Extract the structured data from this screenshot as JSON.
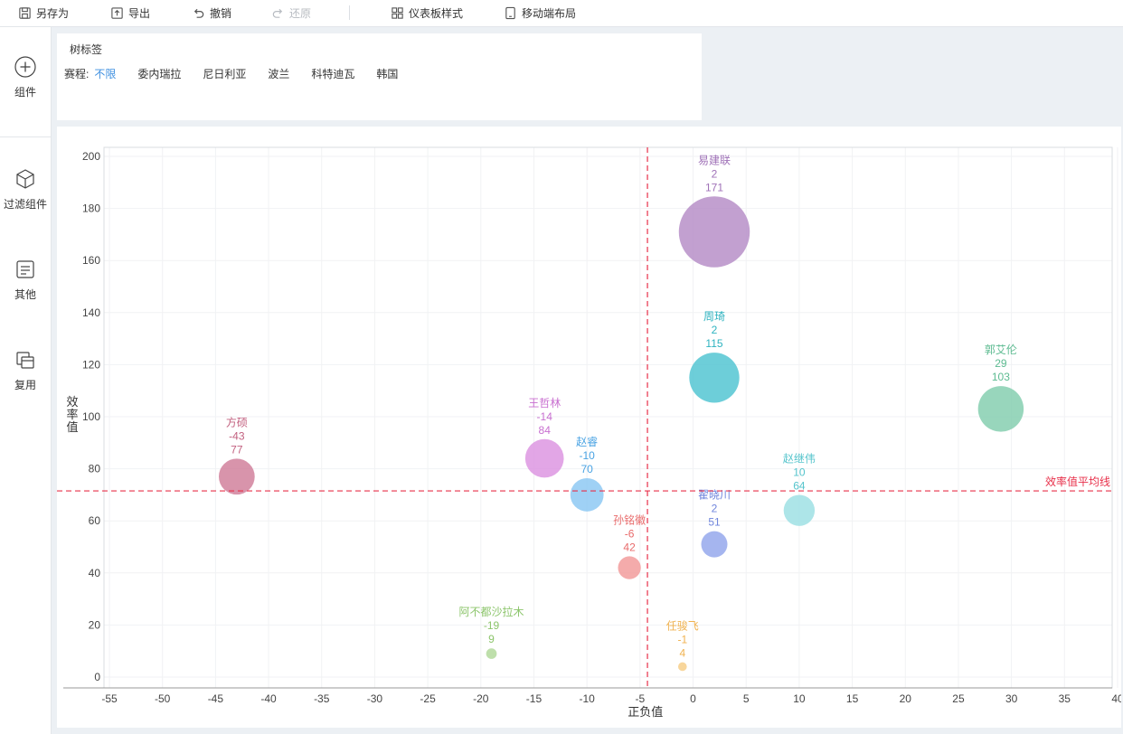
{
  "toolbar": {
    "save_as": "另存为",
    "export": "导出",
    "undo": "撤销",
    "redo": "还原",
    "dashboard_style": "仪表板样式",
    "mobile_layout": "移动端布局"
  },
  "sidebar": {
    "items": [
      {
        "label": "组件",
        "icon": "plus-circle-icon"
      },
      {
        "label": "过滤组件",
        "icon": "cube-icon"
      },
      {
        "label": "其他",
        "icon": "document-icon"
      },
      {
        "label": "复用",
        "icon": "copy-icon"
      }
    ]
  },
  "tree_filter": {
    "title": "树标签",
    "label": "赛程:",
    "options": [
      "不限",
      "委内瑞拉",
      "尼日利亚",
      "波兰",
      "科特迪瓦",
      "韩国"
    ],
    "selected": "不限"
  },
  "chart_data": {
    "type": "scatter",
    "xlabel": "正负值",
    "ylabel": "效率值",
    "xlim": [
      -55,
      40
    ],
    "ylim": [
      0,
      200
    ],
    "x_ticks": [
      -55,
      -50,
      -45,
      -40,
      -35,
      -30,
      -25,
      -20,
      -15,
      -10,
      -5,
      0,
      5,
      10,
      15,
      20,
      25,
      30,
      35,
      40
    ],
    "y_ticks": [
      0,
      20,
      40,
      60,
      80,
      100,
      120,
      140,
      160,
      180,
      200
    ],
    "grid": true,
    "reference_lines": {
      "vertical_x": -4.3,
      "horizontal_y": 71.5,
      "horizontal_label": "效率值平均线",
      "color": "#e8304a"
    },
    "points": [
      {
        "name": "易建联",
        "x": 2,
        "y": 171,
        "color": "#b78fc8",
        "label_color": "#a072b8"
      },
      {
        "name": "周琦",
        "x": 2,
        "y": 115,
        "color": "#54c6d2",
        "label_color": "#2fb3c0"
      },
      {
        "name": "郭艾伦",
        "x": 29,
        "y": 103,
        "color": "#86cfb0",
        "label_color": "#5dbb91"
      },
      {
        "name": "王哲林",
        "x": -14,
        "y": 84,
        "color": "#dd97e2",
        "label_color": "#c86fd0"
      },
      {
        "name": "方硕",
        "x": -43,
        "y": 77,
        "color": "#d1819c",
        "label_color": "#c2607f"
      },
      {
        "name": "赵睿",
        "x": -10,
        "y": 70,
        "color": "#8ec9f3",
        "label_color": "#4aa3e3"
      },
      {
        "name": "赵继伟",
        "x": 10,
        "y": 64,
        "color": "#9fe0e4",
        "label_color": "#55c4cc"
      },
      {
        "name": "翟晓川",
        "x": 2,
        "y": 51,
        "color": "#95a8ec",
        "label_color": "#6f85dc"
      },
      {
        "name": "孙铭徽",
        "x": -6,
        "y": 42,
        "color": "#f29c9c",
        "label_color": "#e86a6a"
      },
      {
        "name": "阿不都沙拉木",
        "x": -19,
        "y": 9,
        "color": "#b3d99c",
        "label_color": "#8cc56b"
      },
      {
        "name": "任骏飞",
        "x": -1,
        "y": 4,
        "color": "#f7cf8a",
        "label_color": "#f0b24f"
      }
    ]
  }
}
